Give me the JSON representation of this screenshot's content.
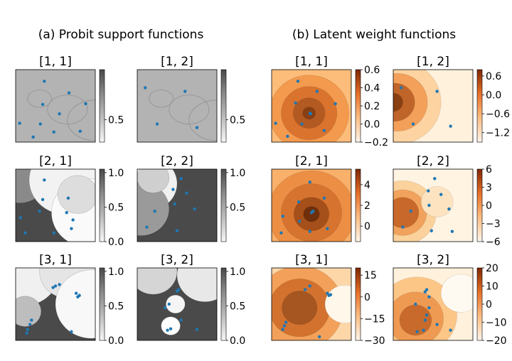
{
  "section_titles": [
    "(a) Probit support functions",
    "(b) Latent weight functions"
  ],
  "chart_data": [
    {
      "type": "heatmap",
      "group": "probit",
      "title": "[1, 1]",
      "colorbar_ticks": [
        {
          "label": "0.5",
          "value": 0.5
        }
      ],
      "range": [
        0.3,
        0.95
      ],
      "points": [
        [
          0.36,
          0.16
        ],
        [
          0.67,
          0.32
        ],
        [
          0.34,
          0.48
        ],
        [
          0.88,
          0.47
        ],
        [
          0.55,
          0.61
        ],
        [
          0.05,
          0.74
        ],
        [
          0.31,
          0.75
        ],
        [
          0.48,
          0.86
        ],
        [
          0.22,
          0.93
        ],
        [
          0.81,
          0.85
        ]
      ]
    },
    {
      "type": "heatmap",
      "group": "probit",
      "title": "[1, 2]",
      "colorbar_ticks": [
        {
          "label": "0.5",
          "value": 0.5
        }
      ],
      "range": [
        0.3,
        0.95
      ],
      "points": [
        [
          0.1,
          0.25
        ],
        [
          0.6,
          0.3
        ],
        [
          0.25,
          0.75
        ],
        [
          0.75,
          0.8
        ]
      ]
    },
    {
      "type": "heatmap",
      "group": "probit",
      "title": "[2, 1]",
      "colorbar_ticks": [
        {
          "label": "0.0",
          "value": 0.0
        },
        {
          "label": "0.5",
          "value": 0.5
        },
        {
          "label": "1.0",
          "value": 1.0
        }
      ],
      "range": [
        0,
        1.05
      ],
      "points": [
        [
          0.36,
          0.15
        ],
        [
          0.66,
          0.4
        ],
        [
          0.34,
          0.42
        ],
        [
          0.64,
          0.6
        ],
        [
          0.3,
          0.58
        ],
        [
          0.06,
          0.67
        ],
        [
          0.12,
          0.88
        ],
        [
          0.72,
          0.7
        ],
        [
          0.48,
          0.88
        ],
        [
          0.7,
          0.82
        ]
      ]
    },
    {
      "type": "heatmap",
      "group": "probit",
      "title": "[2, 2]",
      "colorbar_ticks": [
        {
          "label": "0.5",
          "value": 0.5
        },
        {
          "label": "1.0",
          "value": 1.0
        }
      ],
      "range": [
        0,
        1.05
      ],
      "points": [
        [
          0.55,
          0.13
        ],
        [
          0.45,
          0.28
        ],
        [
          0.62,
          0.33
        ],
        [
          0.47,
          0.48
        ],
        [
          0.22,
          0.58
        ],
        [
          0.72,
          0.55
        ],
        [
          0.12,
          0.8
        ],
        [
          0.5,
          0.85
        ]
      ]
    },
    {
      "type": "heatmap",
      "group": "probit",
      "title": "[3, 1]",
      "colorbar_ticks": [
        {
          "label": "0.0",
          "value": 0.0
        },
        {
          "label": "0.5",
          "value": 0.5
        },
        {
          "label": "1.0",
          "value": 1.0
        }
      ],
      "range": [
        0,
        1.05
      ],
      "points": [
        [
          0.5,
          0.25
        ],
        [
          0.55,
          0.23
        ],
        [
          0.47,
          0.27
        ],
        [
          0.76,
          0.35
        ],
        [
          0.8,
          0.38
        ],
        [
          0.78,
          0.4
        ],
        [
          0.2,
          0.72
        ],
        [
          0.18,
          0.78
        ],
        [
          0.15,
          0.85
        ],
        [
          0.14,
          0.9
        ],
        [
          0.7,
          0.88
        ]
      ]
    },
    {
      "type": "heatmap",
      "group": "probit",
      "title": "[3, 2]",
      "colorbar_ticks": [
        {
          "label": "0.0",
          "value": 0.0
        },
        {
          "label": "0.5",
          "value": 0.5
        },
        {
          "label": "1.0",
          "value": 1.0
        }
      ],
      "range": [
        0,
        1.05
      ],
      "points": [
        [
          0.52,
          0.3
        ],
        [
          0.5,
          0.32
        ],
        [
          0.4,
          0.5
        ],
        [
          0.35,
          0.55
        ],
        [
          0.55,
          0.72
        ],
        [
          0.42,
          0.84
        ],
        [
          0.38,
          0.86
        ],
        [
          0.75,
          0.85
        ]
      ]
    },
    {
      "type": "heatmap",
      "group": "latent",
      "title": "[1, 1]",
      "colorbar_ticks": [
        {
          "label": "0.6",
          "value": 0.6
        },
        {
          "label": "0.4",
          "value": 0.4
        },
        {
          "label": "0.2",
          "value": 0.2
        },
        {
          "label": "0.0",
          "value": 0.0
        },
        {
          "label": "−0.2",
          "value": -0.2
        }
      ],
      "range": [
        -0.2,
        0.6
      ],
      "points": [
        [
          0.33,
          0.16
        ],
        [
          0.57,
          0.3
        ],
        [
          0.3,
          0.46
        ],
        [
          0.49,
          0.61
        ],
        [
          0.48,
          0.6
        ],
        [
          0.05,
          0.74
        ],
        [
          0.38,
          0.75
        ],
        [
          0.66,
          0.84
        ],
        [
          0.2,
          0.92
        ],
        [
          0.8,
          0.47
        ]
      ]
    },
    {
      "type": "heatmap",
      "group": "latent",
      "title": "[1, 2]",
      "colorbar_ticks": [
        {
          "label": "0.6",
          "value": 0.6
        },
        {
          "label": "0.0",
          "value": 0.0
        },
        {
          "label": "−0.6",
          "value": -0.6
        },
        {
          "label": "−1.2",
          "value": -1.2
        }
      ],
      "range": [
        -1.5,
        0.8
      ],
      "points": [
        [
          0.1,
          0.25
        ],
        [
          0.55,
          0.3
        ],
        [
          0.25,
          0.75
        ],
        [
          0.72,
          0.78
        ]
      ]
    },
    {
      "type": "heatmap",
      "group": "latent",
      "title": "[2, 1]",
      "colorbar_ticks": [
        {
          "label": "4",
          "value": 4
        },
        {
          "label": "2",
          "value": 2
        },
        {
          "label": "0",
          "value": 0
        }
      ],
      "range": [
        -1.5,
        5.5
      ],
      "points": [
        [
          0.48,
          0.18
        ],
        [
          0.66,
          0.4
        ],
        [
          0.34,
          0.45
        ],
        [
          0.5,
          0.6
        ],
        [
          0.52,
          0.58
        ],
        [
          0.14,
          0.65
        ],
        [
          0.12,
          0.88
        ],
        [
          0.35,
          0.72
        ],
        [
          0.48,
          0.86
        ],
        [
          0.7,
          0.82
        ]
      ]
    },
    {
      "type": "heatmap",
      "group": "latent",
      "title": "[2, 2]",
      "colorbar_ticks": [
        {
          "label": "6",
          "value": 6
        },
        {
          "label": "3",
          "value": 3
        },
        {
          "label": "0",
          "value": 0
        },
        {
          "label": "−3",
          "value": -3
        },
        {
          "label": "−6",
          "value": -6
        }
      ],
      "range": [
        -6,
        6
      ],
      "points": [
        [
          0.52,
          0.13
        ],
        [
          0.44,
          0.3
        ],
        [
          0.6,
          0.35
        ],
        [
          0.45,
          0.5
        ],
        [
          0.22,
          0.58
        ],
        [
          0.7,
          0.55
        ],
        [
          0.12,
          0.8
        ],
        [
          0.48,
          0.85
        ],
        [
          0.74,
          0.86
        ]
      ]
    },
    {
      "type": "heatmap",
      "group": "latent",
      "title": "[3, 1]",
      "colorbar_ticks": [
        {
          "label": "15",
          "value": 15
        },
        {
          "label": "0",
          "value": 0
        },
        {
          "label": "−15",
          "value": -15
        },
        {
          "label": "−30",
          "value": -30
        }
      ],
      "range": [
        -30,
        20
      ],
      "points": [
        [
          0.48,
          0.25
        ],
        [
          0.42,
          0.3
        ],
        [
          0.7,
          0.35
        ],
        [
          0.72,
          0.38
        ],
        [
          0.74,
          0.37
        ],
        [
          0.18,
          0.75
        ],
        [
          0.16,
          0.8
        ],
        [
          0.14,
          0.85
        ],
        [
          0.6,
          0.95
        ]
      ]
    },
    {
      "type": "heatmap",
      "group": "latent",
      "title": "[3, 2]",
      "colorbar_ticks": [
        {
          "label": "20",
          "value": 20
        },
        {
          "label": "10",
          "value": 10
        },
        {
          "label": "0",
          "value": 0
        },
        {
          "label": "−10",
          "value": -10
        },
        {
          "label": "−20",
          "value": -20
        }
      ],
      "range": [
        -20,
        20
      ],
      "points": [
        [
          0.42,
          0.3
        ],
        [
          0.4,
          0.33
        ],
        [
          0.45,
          0.4
        ],
        [
          0.28,
          0.5
        ],
        [
          0.45,
          0.55
        ],
        [
          0.42,
          0.65
        ],
        [
          0.4,
          0.72
        ],
        [
          0.55,
          0.78
        ],
        [
          0.38,
          0.86
        ],
        [
          0.3,
          0.88
        ],
        [
          0.72,
          0.86
        ]
      ]
    }
  ],
  "colors": {
    "point": "#1f77b4",
    "latent_dark": "#7f2704",
    "latent_light": "#fff5eb",
    "probit_dark": "#3a3a3a"
  }
}
